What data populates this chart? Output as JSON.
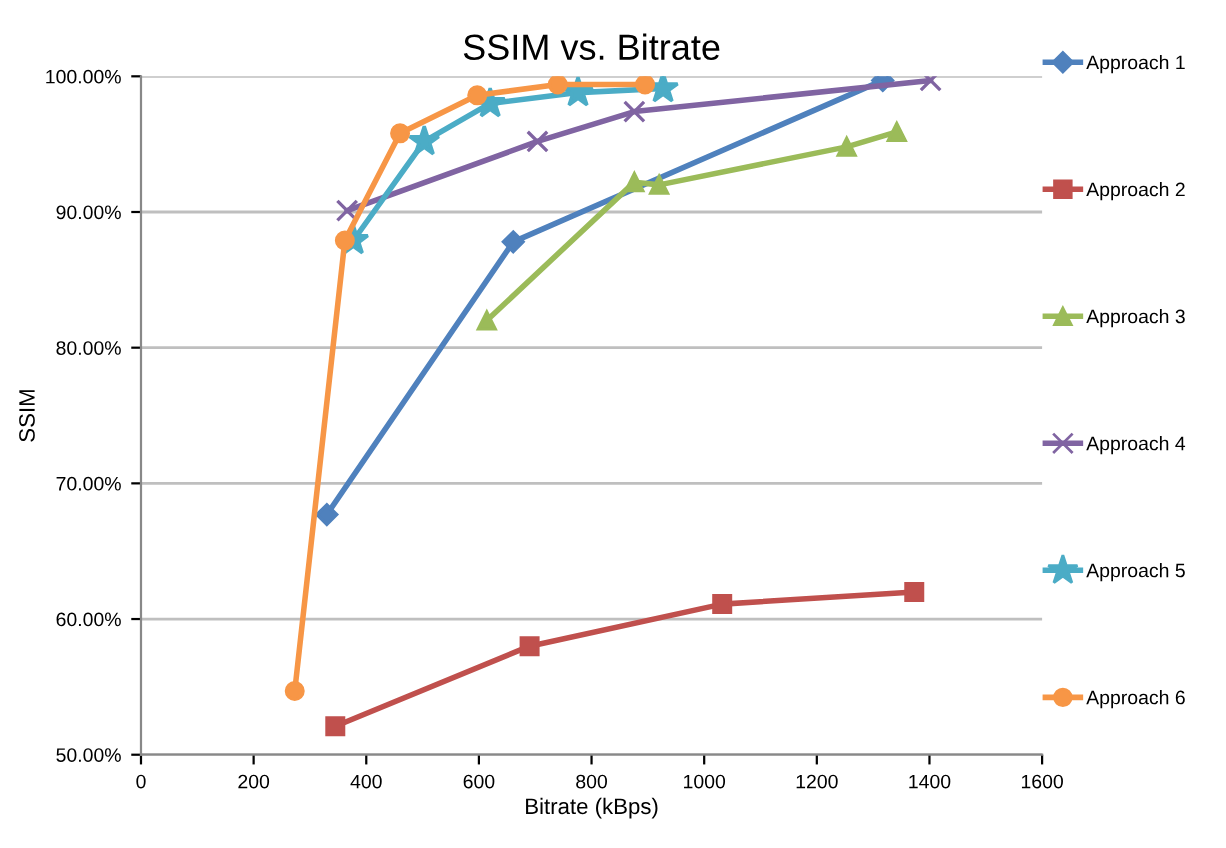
{
  "chart_data": {
    "type": "line",
    "title": "SSIM vs. Bitrate",
    "xlabel": "Bitrate (kBps)",
    "ylabel": "SSIM",
    "xlim": [
      0,
      1600
    ],
    "xticks": [
      0,
      200,
      400,
      600,
      800,
      1000,
      1200,
      1400,
      1600
    ],
    "ylim": [
      50,
      100
    ],
    "yticks": [
      {
        "value": 50,
        "label": "50.00%"
      },
      {
        "value": 60,
        "label": "60.00%"
      },
      {
        "value": 70,
        "label": "70.00%"
      },
      {
        "value": 80,
        "label": "80.00%"
      },
      {
        "value": 90,
        "label": "90.00%"
      },
      {
        "value": 100,
        "label": "100.00%"
      }
    ],
    "grid": "y",
    "legend": "right",
    "series": [
      {
        "name": "Approach 1",
        "color": "#4f81bd",
        "marker": "diamond",
        "x": [
          330,
          661,
          1317
        ],
        "values": [
          67.7,
          87.8,
          99.7
        ]
      },
      {
        "name": "Approach 2",
        "color": "#c0504d",
        "marker": "square",
        "x": [
          345,
          690,
          1032,
          1373
        ],
        "values": [
          52.1,
          58.0,
          61.1,
          62.0
        ]
      },
      {
        "name": "Approach 3",
        "color": "#9bbb59",
        "marker": "triangle",
        "x": [
          614,
          876,
          920,
          1253,
          1342
        ],
        "values": [
          82.0,
          92.2,
          92.0,
          94.8,
          95.9
        ]
      },
      {
        "name": "Approach 4",
        "color": "#8064a2",
        "marker": "cross",
        "x": [
          366,
          704,
          876,
          1402
        ],
        "values": [
          90.1,
          95.2,
          97.4,
          99.7
        ]
      },
      {
        "name": "Approach 5",
        "color": "#4bacc6",
        "marker": "star",
        "x": [
          377,
          503,
          620,
          776,
          927
        ],
        "values": [
          87.9,
          95.2,
          98.0,
          98.8,
          99.1
        ]
      },
      {
        "name": "Approach 6",
        "color": "#f79646",
        "marker": "circle",
        "x": [
          273,
          362,
          460,
          597,
          740,
          895
        ],
        "values": [
          54.7,
          87.9,
          95.8,
          98.6,
          99.4,
          99.4
        ]
      }
    ]
  }
}
